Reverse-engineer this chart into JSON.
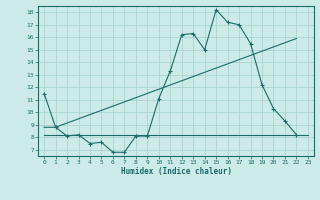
{
  "title": "",
  "xlabel": "Humidex (Indice chaleur)",
  "ylabel": "",
  "bg_color": "#cceae7",
  "grid_color": "#aad4d0",
  "line_color": "#1a6b6a",
  "xlim": [
    -0.5,
    23.5
  ],
  "ylim": [
    6.5,
    18.5
  ],
  "yticks": [
    7,
    8,
    9,
    10,
    11,
    12,
    13,
    14,
    15,
    16,
    17,
    18
  ],
  "xticks": [
    0,
    1,
    2,
    3,
    4,
    5,
    6,
    7,
    8,
    9,
    10,
    11,
    12,
    13,
    14,
    15,
    16,
    17,
    18,
    19,
    20,
    21,
    22,
    23
  ],
  "line1_x": [
    0,
    1,
    2,
    3,
    4,
    5,
    6,
    7,
    8,
    9,
    10,
    11,
    12,
    13,
    14,
    15,
    16,
    17,
    18,
    19,
    20,
    21,
    22
  ],
  "line1_y": [
    11.5,
    8.8,
    8.1,
    8.2,
    7.5,
    7.6,
    6.8,
    6.8,
    8.1,
    8.1,
    11.1,
    13.3,
    16.2,
    16.3,
    15.0,
    18.2,
    17.2,
    17.0,
    15.5,
    12.2,
    10.3,
    9.3,
    8.2
  ],
  "line2_x": [
    0,
    23
  ],
  "line2_y": [
    8.2,
    8.2
  ],
  "line3_x": [
    0,
    1,
    22
  ],
  "line3_y": [
    8.8,
    8.8,
    15.9
  ]
}
